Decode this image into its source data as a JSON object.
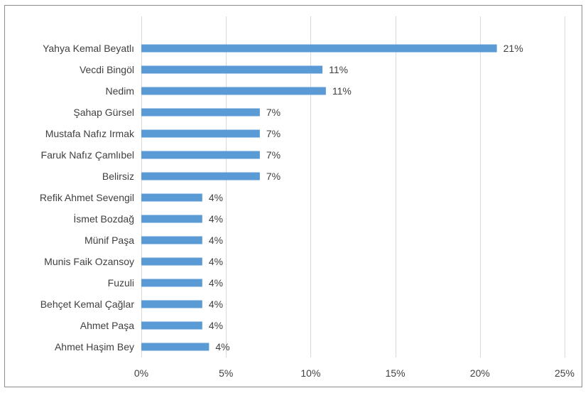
{
  "chart_data": {
    "type": "bar",
    "orientation": "horizontal",
    "title": "",
    "xlabel": "",
    "ylabel": "",
    "xlim": [
      0,
      25
    ],
    "x_ticks": [
      0,
      5,
      10,
      15,
      20,
      25
    ],
    "x_tick_labels": [
      "0%",
      "5%",
      "10%",
      "15%",
      "20%",
      "25%"
    ],
    "grid": true,
    "legend": "none",
    "bar_color": "#5b9bd5",
    "gridline_color": "#d9d9d9",
    "categories": [
      "Yahya Kemal Beyatlı",
      "Vecdi Bingöl",
      "Nedim",
      "Şahap Gürsel",
      "Mustafa Nafız Irmak",
      "Faruk Nafız Çamlıbel",
      "Belirsiz",
      "Refik Ahmet Sevengil",
      "İsmet Bozdağ",
      "Münif Paşa",
      "Munis Faik Ozansoy",
      "Fuzuli",
      "Behçet Kemal Çağlar",
      "Ahmet Paşa",
      "Ahmet Haşim Bey"
    ],
    "values": [
      21,
      10.7,
      10.9,
      7,
      7,
      7,
      7,
      3.6,
      3.6,
      3.6,
      3.6,
      3.6,
      3.6,
      3.6,
      4
    ],
    "data_labels": [
      "21%",
      "11%",
      "11%",
      "7%",
      "7%",
      "7%",
      "7%",
      "4%",
      "4%",
      "4%",
      "4%",
      "4%",
      "4%",
      "4%",
      "4%"
    ]
  }
}
